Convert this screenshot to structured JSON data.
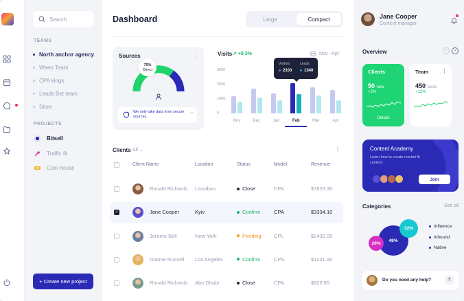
{
  "sidebar": {
    "search_placeholder": "Search",
    "teams_label": "TEAMS",
    "teams": [
      "North anchor agency",
      "Ween Team",
      "CPA kings",
      "Leads Bet team",
      "Store"
    ],
    "projects_label": "PROJECTS",
    "projects": [
      "Bitsell",
      "Traffic fit",
      "Coin house"
    ],
    "create_label": "+ Create new project"
  },
  "main": {
    "title": "Dashboard",
    "view_large": "Large",
    "view_compact": "Compact",
    "sources": {
      "title": "Sources",
      "gauge_value": "75%",
      "gauge_label": "Direct",
      "note": "We only take data from secure sources."
    },
    "visits": {
      "title": "Visits",
      "change": "+0.3%",
      "range": "Nov - Apr",
      "tooltip": {
        "visitors_label": "Visitors",
        "leads_label": "Leads",
        "visitors": "2103",
        "leads": "1340"
      }
    },
    "clients": {
      "title": "Clients",
      "filter": "All",
      "columns": [
        "Client Name",
        "Location",
        "Status",
        "Model",
        "Revenue"
      ],
      "rows": [
        {
          "name": "Ronald Richards",
          "location": "Lissabon",
          "status": "Close",
          "model": "CPA",
          "revenue": "$7829.30"
        },
        {
          "name": "Jane Cooper",
          "location": "Kyiv",
          "status": "Confirm",
          "model": "CPA",
          "revenue": "$3334.10"
        },
        {
          "name": "Jerome Bell",
          "location": "New York",
          "status": "Pending",
          "model": "CPL",
          "revenue": "$2432.00"
        },
        {
          "name": "Dianne Russell",
          "location": "Los Angeles",
          "status": "Confirm",
          "model": "CPS",
          "revenue": "$1231.90"
        },
        {
          "name": "Ronald Richards",
          "location": "Abu Dhabi",
          "status": "Close",
          "model": "CPA",
          "revenue": "$829.85"
        }
      ]
    }
  },
  "chart_data": {
    "type": "bar",
    "categories": [
      "Nov",
      "Dec",
      "Jan",
      "Feb",
      "Mar",
      "Apr"
    ],
    "series": [
      {
        "name": "Visitors",
        "values": [
          1200,
          1700,
          1400,
          2103,
          1800,
          1600
        ]
      },
      {
        "name": "Leads",
        "values": [
          800,
          1100,
          900,
          1340,
          1250,
          900
        ]
      }
    ],
    "yticks": [
      "3000",
      "2000",
      "1000",
      "0"
    ],
    "ylim": [
      0,
      3000
    ],
    "selected": "Feb",
    "colors": {
      "visitors": "#c5c9f0",
      "leads": "#b3e6ee",
      "visitors_selected": "#2b2ab5",
      "leads_selected": "#18b0c0"
    }
  },
  "right": {
    "user_name": "Jane Cooper",
    "user_role": "Content manager",
    "overview_title": "Overview",
    "clients_card": {
      "title": "Clients",
      "value": "50",
      "unit": "new",
      "change": "+2%",
      "action": "Details"
    },
    "team_card": {
      "title": "Team",
      "value": "450",
      "unit": "tasks",
      "change": "+12%"
    },
    "academy": {
      "title": "Content Academy",
      "desc": "Learn how to create market fit content.",
      "join": "Join"
    },
    "categories": {
      "title": "Categories",
      "see_all": "See all",
      "items": [
        {
          "label": "Influence",
          "value": "48%"
        },
        {
          "label": "Inbound",
          "value": "32%"
        },
        {
          "label": "Native",
          "value": "20%"
        }
      ]
    },
    "help": "Do you need any help?"
  }
}
